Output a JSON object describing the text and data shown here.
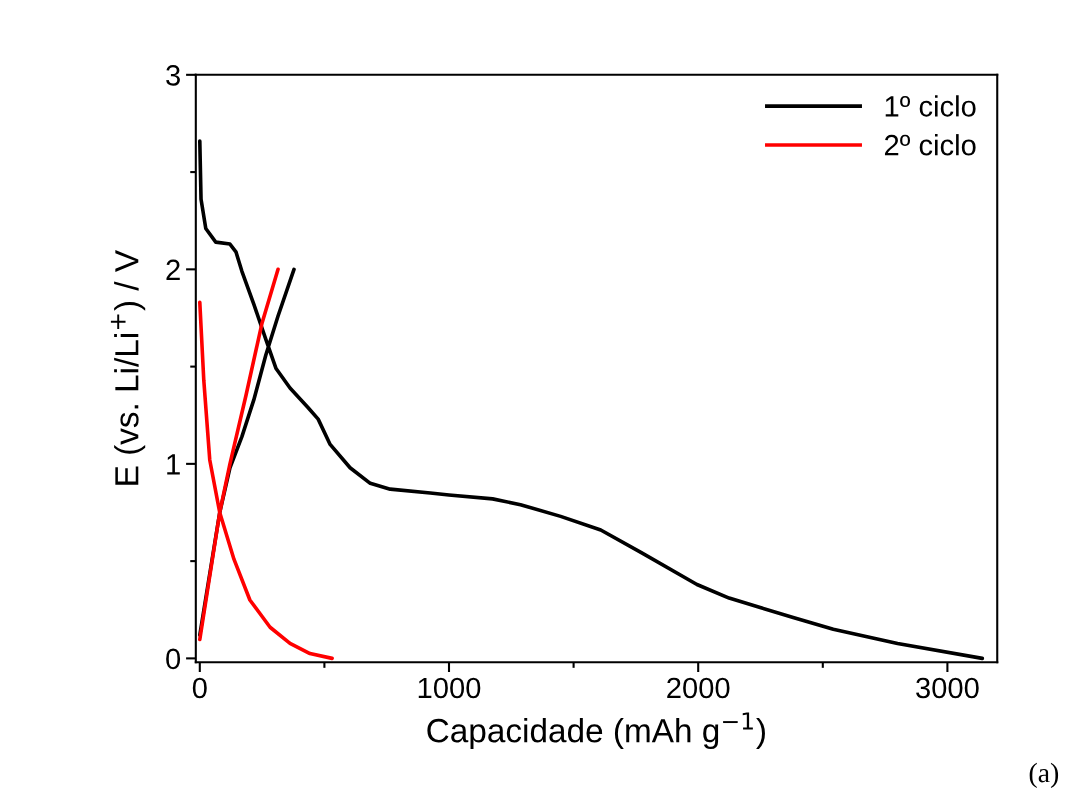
{
  "chart_data": {
    "type": "line",
    "xlabel": "Capacidade (mAh g$^{−1}$)",
    "ylabel": "E (vs. Li/Li$^{+}$) / V",
    "xlim": [
      -16,
      3200
    ],
    "ylim": [
      -0.02,
      3
    ],
    "xticks": [
      0,
      {
        "value": 500,
        "label": null
      },
      1000,
      {
        "value": 1500,
        "label": null
      },
      2000,
      {
        "value": 2500,
        "label": null
      },
      3000
    ],
    "yticks": [
      0,
      {
        "value": 0.5,
        "label": null
      },
      1,
      {
        "value": 1.5,
        "label": null
      },
      2,
      {
        "value": 2.5,
        "label": null
      },
      3
    ],
    "grid": false,
    "legend": "top right",
    "marker": "none",
    "line_style": "solid",
    "annotations": [
      "(a)"
    ],
    "series": [
      {
        "name": "1º ciclo",
        "color": "#000000",
        "x": [
          0,
          5,
          24,
          64,
          121,
          145,
          169,
          217,
          265,
          306,
          362,
          434,
          475,
          523,
          603,
          684,
          764,
          925,
          1000,
          1175,
          1287,
          1448,
          1609,
          1770,
          1995,
          2124,
          2252,
          2381,
          2542,
          2800,
          3140,
          null,
          0,
          80,
          121,
          169,
          217,
          265,
          314,
          378
        ],
        "values": [
          2.66,
          2.36,
          2.21,
          2.14,
          2.13,
          2.09,
          1.99,
          1.82,
          1.64,
          1.49,
          1.39,
          1.29,
          1.23,
          1.1,
          0.98,
          0.9,
          0.87,
          0.85,
          0.84,
          0.82,
          0.79,
          0.73,
          0.66,
          0.545,
          0.38,
          0.31,
          0.26,
          0.21,
          0.15,
          0.077,
          0.0,
          null,
          0.12,
          0.75,
          0.98,
          1.14,
          1.33,
          1.56,
          1.76,
          2.0
        ]
      },
      {
        "name": "2º ciclo",
        "color": "#ff0000",
        "x": [
          0,
          16,
          40,
          80,
          137,
          201,
          282,
          362,
          442,
          531,
          null,
          0,
          80,
          121,
          185,
          249,
          314
        ],
        "values": [
          1.83,
          1.43,
          1.02,
          0.75,
          0.51,
          0.3,
          0.16,
          0.077,
          0.025,
          0.0,
          null,
          0.097,
          0.75,
          1.0,
          1.35,
          1.72,
          2.0
        ]
      }
    ]
  }
}
